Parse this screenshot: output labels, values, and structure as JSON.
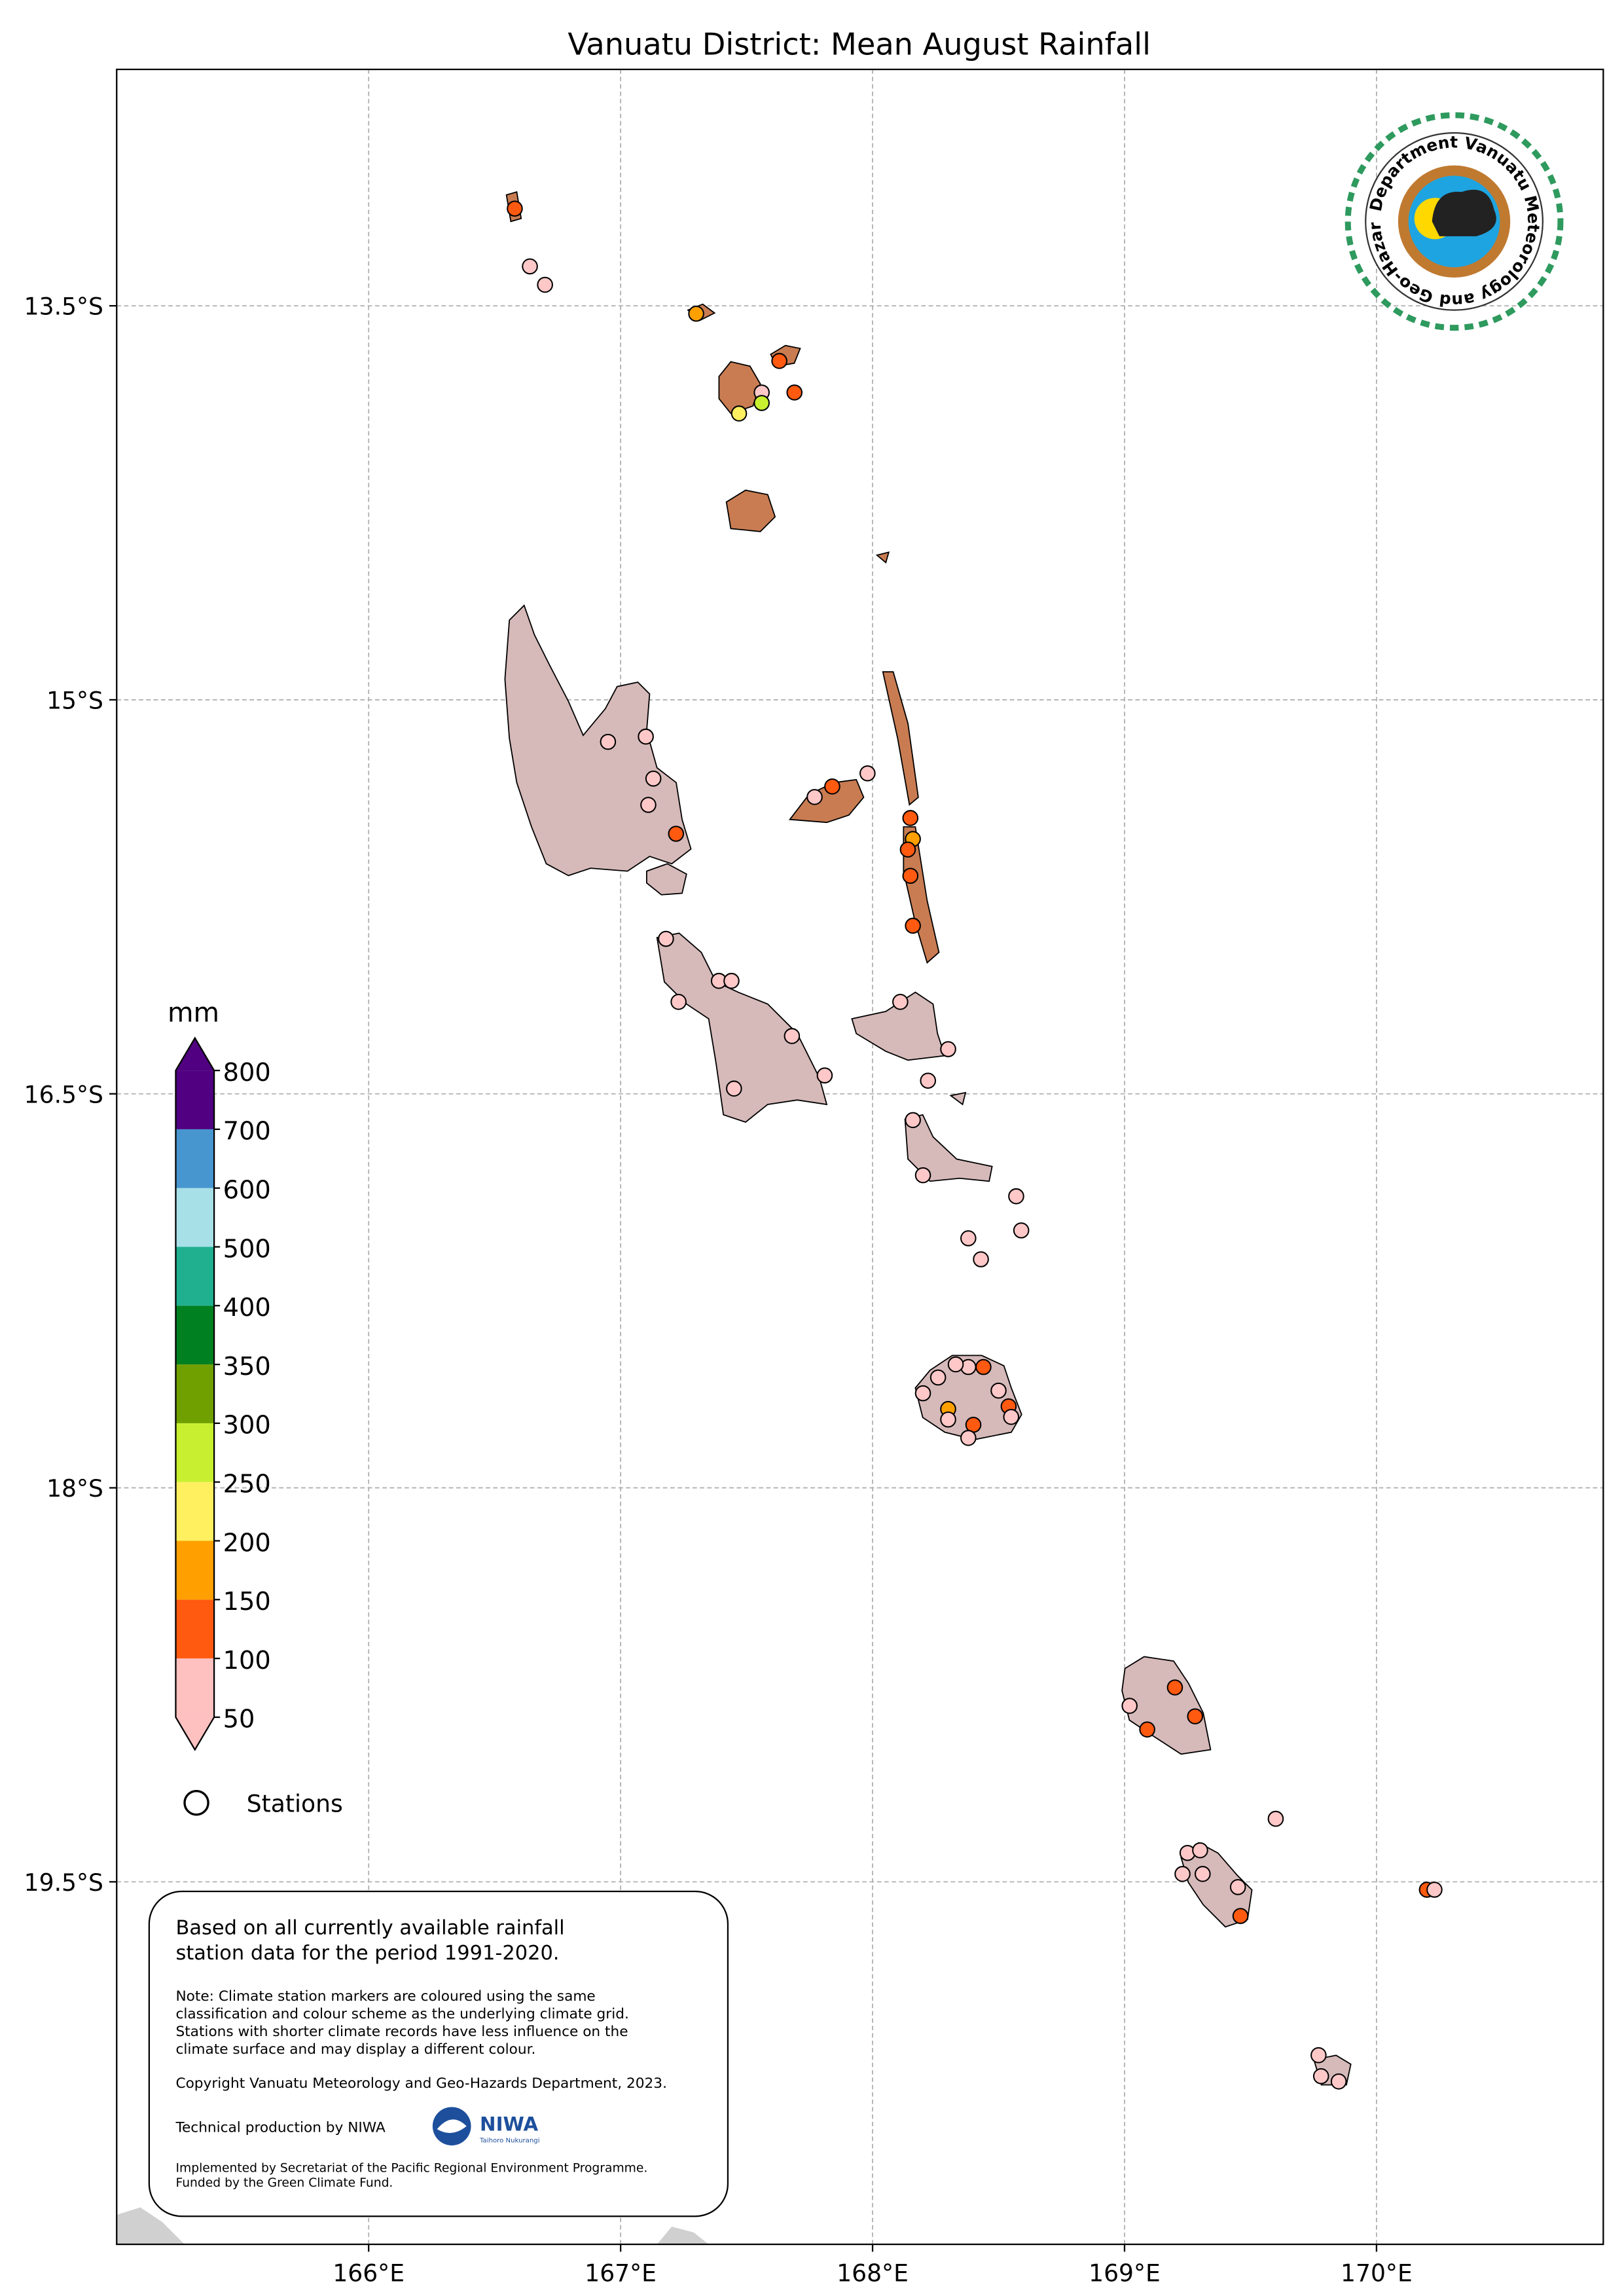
{
  "title": "Vanuatu District: Mean August Rainfall",
  "map": {
    "xlim": [
      165.0,
      170.9
    ],
    "ylim": [
      -20.88,
      -12.6
    ],
    "xticks": [
      {
        "value": 166,
        "label": "166°E"
      },
      {
        "value": 167,
        "label": "167°E"
      },
      {
        "value": 168,
        "label": "168°E"
      },
      {
        "value": 169,
        "label": "169°E"
      },
      {
        "value": 170,
        "label": "170°E"
      }
    ],
    "yticks": [
      {
        "value": -13.5,
        "label": "13.5°S"
      },
      {
        "value": -15,
        "label": "15°S"
      },
      {
        "value": -16.5,
        "label": "16.5°S"
      },
      {
        "value": -18,
        "label": "18°S"
      },
      {
        "value": -19.5,
        "label": "19.5°S"
      }
    ],
    "grid": true
  },
  "colorbar": {
    "label": "mm",
    "levels": [
      50,
      100,
      150,
      200,
      250,
      300,
      350,
      400,
      500,
      600,
      700,
      800
    ],
    "colors": [
      "#ffc0c0",
      "#ff5a10",
      "#ffa000",
      "#fff060",
      "#c8f030",
      "#70a000",
      "#008020",
      "#20b090",
      "#a8e0e8",
      "#4896d0",
      "#500080"
    ]
  },
  "legend": {
    "label": "Stations"
  },
  "stations": {
    "lon": [
      166.58,
      166.64,
      166.7,
      167.3,
      167.63,
      167.69,
      167.56,
      167.56,
      167.47,
      166.95,
      167.1,
      167.13,
      167.11,
      167.22,
      167.98,
      167.84,
      167.77,
      168.15,
      168.16,
      168.14,
      168.15,
      168.16,
      167.18,
      167.23,
      167.39,
      167.44,
      167.68,
      167.81,
      167.45,
      168.11,
      168.3,
      168.22,
      168.16,
      168.2,
      168.57,
      168.59,
      168.38,
      168.43,
      168.44,
      168.38,
      168.33,
      168.26,
      168.2,
      168.5,
      168.54,
      168.55,
      168.4,
      168.3,
      168.3,
      168.38,
      169.2,
      169.02,
      169.28,
      169.09,
      169.6,
      169.25,
      169.3,
      169.23,
      169.31,
      169.45,
      169.46,
      170.2,
      170.23,
      169.77,
      169.78,
      169.85
    ],
    "lat": [
      -13.13,
      -13.35,
      -13.42,
      -13.53,
      -13.71,
      -13.83,
      -13.83,
      -13.87,
      -13.91,
      -15.16,
      -15.14,
      -15.3,
      -15.4,
      -15.51,
      -15.28,
      -15.33,
      -15.37,
      -15.45,
      -15.53,
      -15.57,
      -15.67,
      -15.86,
      -15.91,
      -16.15,
      -16.07,
      -16.07,
      -16.28,
      -16.43,
      -16.48,
      -16.15,
      -16.33,
      -16.45,
      -16.6,
      -16.81,
      -16.89,
      -17.02,
      -17.05,
      -17.13,
      -17.54,
      -17.54,
      -17.53,
      -17.58,
      -17.64,
      -17.63,
      -17.69,
      -17.73,
      -17.76,
      -17.7,
      -17.74,
      -17.81,
      -18.76,
      -18.83,
      -18.87,
      -18.92,
      -19.26,
      -19.39,
      -19.38,
      -19.47,
      -19.47,
      -19.52,
      -19.63,
      -19.53,
      -19.53,
      -20.16,
      -20.24,
      -20.26
    ],
    "colors": [
      "#ff5a10",
      "#ffc8c8",
      "#ffc8c8",
      "#ffa000",
      "#ff5a10",
      "#ff5a10",
      "#ffc8c8",
      "#c8f030",
      "#fff060",
      "#ffc8c8",
      "#ffc8c8",
      "#ffc8c8",
      "#ffc8c8",
      "#ff5a10",
      "#ffc8c8",
      "#ff5a10",
      "#ffc8c8",
      "#ff5a10",
      "#ffa000",
      "#ff5a10",
      "#ff5a10",
      "#ff5a10",
      "#ffc8c8",
      "#ffc8c8",
      "#ffc8c8",
      "#ffc8c8",
      "#ffc8c8",
      "#ffc8c8",
      "#ffc8c8",
      "#ffc8c8",
      "#ffc8c8",
      "#ffc8c8",
      "#ffc8c8",
      "#ffc8c8",
      "#ffc8c8",
      "#ffc8c8",
      "#ffc8c8",
      "#ffc8c8",
      "#ff5a10",
      "#ffc8c8",
      "#ffc8c8",
      "#ffc8c8",
      "#ffc8c8",
      "#ffc8c8",
      "#ff5a10",
      "#ffc8c8",
      "#ff5a10",
      "#ffa000",
      "#ffc8c8",
      "#ffc8c8",
      "#ff5a10",
      "#ffc8c8",
      "#ff5a10",
      "#ff5a10",
      "#ffc8c8",
      "#ffc8c8",
      "#ffc8c8",
      "#ffc8c8",
      "#ffc8c8",
      "#ffc8c8",
      "#ff5a10",
      "#ff5a10",
      "#ffc8c8",
      "#ffc8c8",
      "#ffc8c8",
      "#ffc8c8"
    ]
  },
  "notes": {
    "main": [
      "Based on all currently available rainfall",
      "station data for the period 1991-2020."
    ],
    "detail": [
      "Note: Climate station markers are coloured using the same",
      "classification and colour scheme as the underlying climate grid.",
      "Stations with shorter climate records have less influence on the",
      "climate surface and may display a different colour."
    ],
    "copyright": "Copyright Vanuatu Meteorology and Geo-Hazards Department, 2023.",
    "production": "Technical production by NIWA",
    "niwa": "NIWA",
    "niwa_sub": "Taihoro Nukurangi",
    "funding": [
      "Implemented by Secretariat of the Pacific Regional Environment Programme.",
      "Funded by the Green Climate Fund."
    ]
  },
  "logo": {
    "text": "Department Vanuatu Meteorology and Geo-Hazards"
  }
}
